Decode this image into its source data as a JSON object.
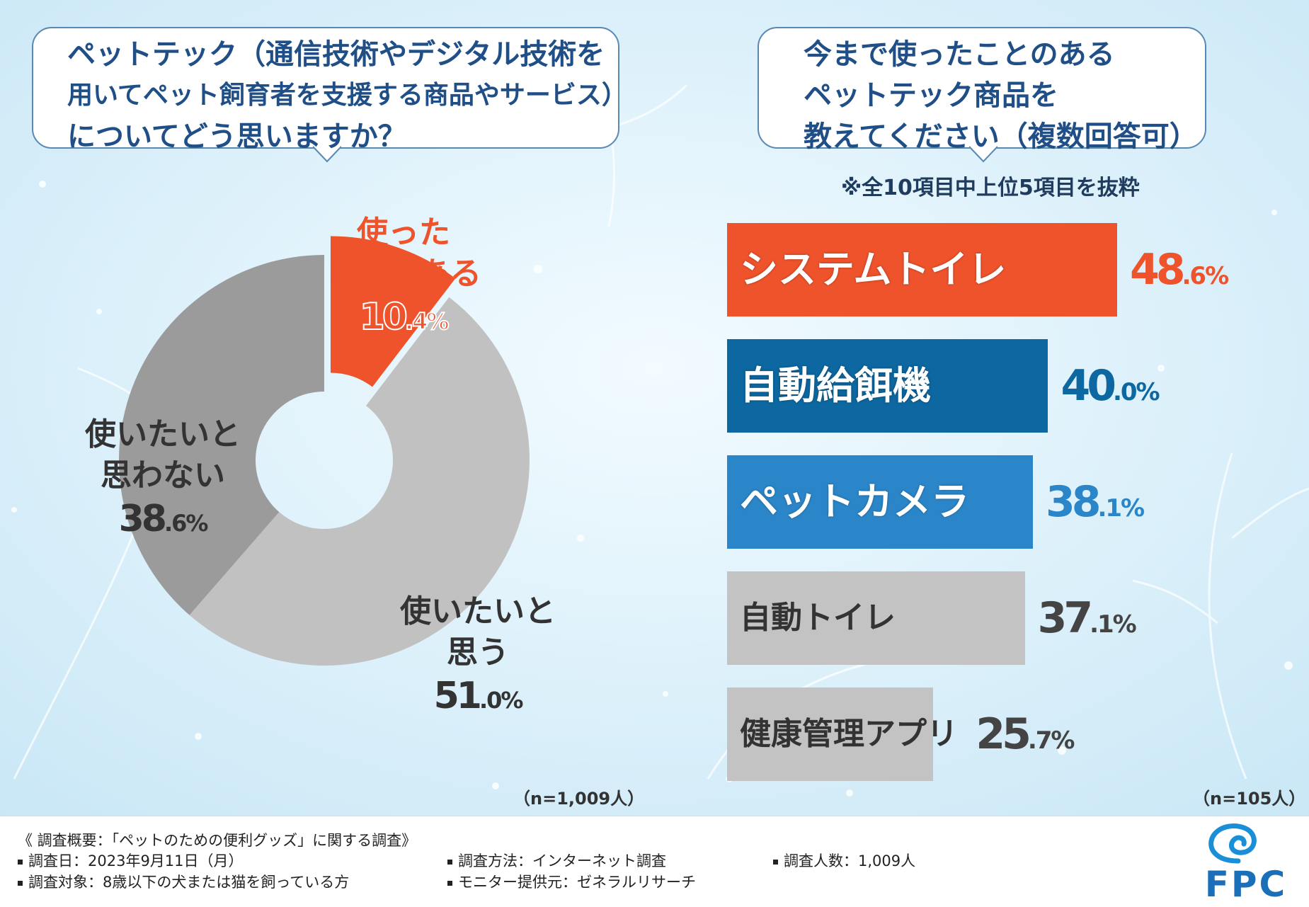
{
  "colors": {
    "accent_orange": "#ee532c",
    "dark_blue": "#0d67a0",
    "mid_blue": "#2b86c9",
    "gray_bar": "#c3c3c3",
    "pie_light": "#c1c1c1",
    "pie_dark": "#9b9b9b",
    "question_text": "#1f4f86"
  },
  "left_question": {
    "lines": [
      "ペットテック（通信技術やデジタル技術を",
      "用いてペット飼育者を支援する商品やサービス）",
      "についてどう思いますか？"
    ]
  },
  "right_question": {
    "lines": [
      "今まで使ったことのある",
      "ペットテック商品を",
      "教えてください（複数回答可）"
    ]
  },
  "right_note": "※全10項目中上位5項目を抜粋",
  "chart_data": [
    {
      "type": "pie",
      "title": "ペットテック（通信技術やデジタル技術を用いてペット飼育者を支援する商品やサービス）についてどう思いますか？",
      "slices": [
        {
          "label": "使ったことがある",
          "value": 10.4,
          "label_lines": [
            "使った",
            "ことがある"
          ],
          "pct_main": "10",
          "pct_dec": ".4%",
          "color": "#ee532c"
        },
        {
          "label": "使いたいと思う",
          "value": 51.0,
          "label_lines": [
            "使いたいと",
            "思う"
          ],
          "pct_main": "51",
          "pct_dec": ".0%",
          "color": "#c1c1c1"
        },
        {
          "label": "使いたいと思わない",
          "value": 38.6,
          "label_lines": [
            "使いたいと",
            "思わない"
          ],
          "pct_main": "38",
          "pct_dec": ".6%",
          "color": "#9b9b9b"
        }
      ],
      "n_label": "（n=1,009人）"
    },
    {
      "type": "bar",
      "orientation": "horizontal",
      "title": "今まで使ったことのあるペットテック商品を教えてください（複数回答可）",
      "categories": [
        "システムトイレ",
        "自動給餌機",
        "ペットカメラ",
        "自動トイレ",
        "健康管理アプリ"
      ],
      "values": [
        48.6,
        40.0,
        38.1,
        37.1,
        25.7
      ],
      "value_main": [
        "48",
        "40",
        "38",
        "37",
        "25"
      ],
      "value_dec": [
        ".6%",
        ".0%",
        ".1%",
        ".1%",
        ".7%"
      ],
      "xlim": [
        0,
        55
      ],
      "n_label": "（n=105人）"
    }
  ],
  "footer": {
    "survey_title": "《 調査概要：「ペットのための便利グッズ」に関する調査》",
    "date": "調査日：2023年9月11日（月）",
    "method": "調査方法：インターネット調査",
    "count": "調査人数：1,009人",
    "target": "調査対象：8歳以下の犬または猫を飼っている方",
    "provider": "モニター提供元：ゼネラルリサーチ",
    "logo_text": "FPC"
  }
}
